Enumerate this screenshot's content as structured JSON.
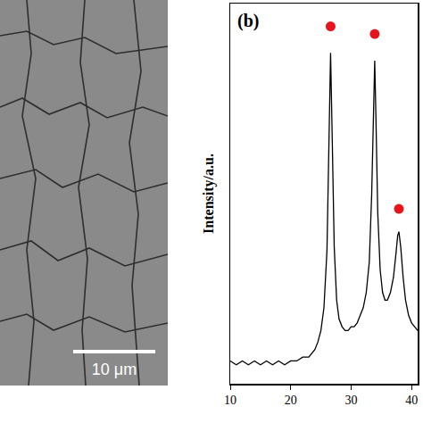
{
  "image_panel": {
    "scale_bar": "10 μm"
  },
  "chart_data": {
    "type": "line",
    "panel_label": "(b)",
    "y_label": "Intensity/a.u.",
    "xlim": [
      10,
      41
    ],
    "xticks": [
      10,
      20,
      30,
      40
    ],
    "ylim": [
      0,
      100
    ],
    "yticks": [],
    "tick_labels": "x",
    "grid": false,
    "series": [
      {
        "type": "line",
        "color": "#000000",
        "line_style": "solid",
        "x": [
          10,
          11,
          12,
          13,
          14,
          15,
          16,
          17,
          18,
          19,
          20,
          21,
          22,
          23,
          24,
          24.5,
          25,
          25.5,
          26,
          26.3,
          26.6,
          26.9,
          27.2,
          27.6,
          28,
          28.5,
          29,
          29.5,
          30,
          30.5,
          31,
          31.5,
          32,
          32.5,
          33,
          33.4,
          33.7,
          33.9,
          34.1,
          34.4,
          34.8,
          35.2,
          35.6,
          36,
          36.5,
          37,
          37.4,
          37.7,
          37.9,
          38.2,
          38.6,
          39,
          39.5,
          40,
          40.5,
          41
        ],
        "values": [
          6,
          5,
          6,
          5,
          6,
          5,
          6,
          5,
          6,
          5,
          6,
          6,
          7,
          7,
          9,
          11,
          14,
          20,
          35,
          60,
          87,
          62,
          36,
          22,
          17,
          15,
          14,
          14,
          15,
          15,
          16,
          18,
          20,
          24,
          32,
          50,
          72,
          85,
          70,
          45,
          30,
          24,
          22,
          22,
          24,
          28,
          34,
          39,
          40,
          36,
          28,
          22,
          18,
          16,
          15,
          14
        ]
      },
      {
        "type": "scatter",
        "marker": "circle",
        "color": "#e8141b",
        "x": [
          26.6,
          33.9,
          37.9
        ],
        "values": [
          94,
          92,
          46
        ]
      }
    ]
  }
}
